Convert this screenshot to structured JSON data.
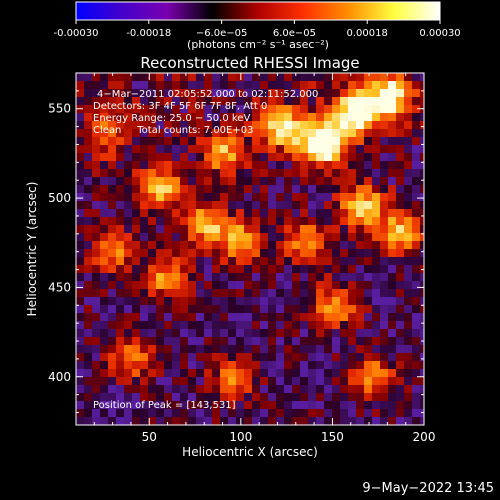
{
  "colorbar": {
    "ticks": [
      "-0.00030",
      "-0.00018",
      "−6.0e−05",
      "6.0e−05",
      "0.00018",
      "0.00030"
    ],
    "tick_values": [
      -0.0003,
      -0.00018,
      -6e-05,
      6e-05,
      0.00018,
      0.0003
    ],
    "range": [
      -0.0003,
      0.0003
    ],
    "units": "(photons cm⁻² s⁻¹ asec⁻²)",
    "colors": [
      "#0000ff",
      "#4400cc",
      "#7a00b0",
      "#000000",
      "#b00000",
      "#ff3000",
      "#ff9000",
      "#ffff40",
      "#ffffff"
    ]
  },
  "chart_data": {
    "type": "heatmap",
    "title": "Reconstructed RHESSI Image",
    "xlabel": "Heliocentric X (arcsec)",
    "ylabel": "Heliocentric Y (arcsec)",
    "xlim": [
      10,
      200
    ],
    "ylim": [
      373,
      570
    ],
    "xticks": [
      50,
      100,
      150,
      200
    ],
    "yticks": [
      400,
      450,
      500,
      550
    ],
    "annotations": [
      "4−Mar−2011 02:05:52.000 to 02:11:52.000",
      "Detectors: 3F 4F 5F 6F 7F 8F, Att 0",
      "Energy Range: 25.0 − 50.0 keV",
      "Clean     Total counts: 7.00E+03"
    ],
    "peak_label": "Position of Peak = [143,531]",
    "peak": [
      143,
      531
    ],
    "hotspots": [
      {
        "x": 143,
        "y": 531,
        "v": 1.0
      },
      {
        "x": 160,
        "y": 547,
        "v": 0.85
      },
      {
        "x": 178,
        "y": 556,
        "v": 0.8
      },
      {
        "x": 120,
        "y": 540,
        "v": 0.65
      },
      {
        "x": 55,
        "y": 505,
        "v": 0.6
      },
      {
        "x": 80,
        "y": 485,
        "v": 0.55
      },
      {
        "x": 100,
        "y": 475,
        "v": 0.55
      },
      {
        "x": 135,
        "y": 475,
        "v": 0.5
      },
      {
        "x": 165,
        "y": 495,
        "v": 0.6
      },
      {
        "x": 185,
        "y": 480,
        "v": 0.55
      },
      {
        "x": 60,
        "y": 455,
        "v": 0.5
      },
      {
        "x": 30,
        "y": 470,
        "v": 0.45
      },
      {
        "x": 150,
        "y": 440,
        "v": 0.5
      },
      {
        "x": 40,
        "y": 410,
        "v": 0.45
      },
      {
        "x": 95,
        "y": 400,
        "v": 0.4
      },
      {
        "x": 170,
        "y": 400,
        "v": 0.45
      },
      {
        "x": 25,
        "y": 535,
        "v": 0.4
      },
      {
        "x": 90,
        "y": 525,
        "v": 0.5
      }
    ]
  },
  "footer": {
    "date": "9−May−2022 13:45"
  }
}
